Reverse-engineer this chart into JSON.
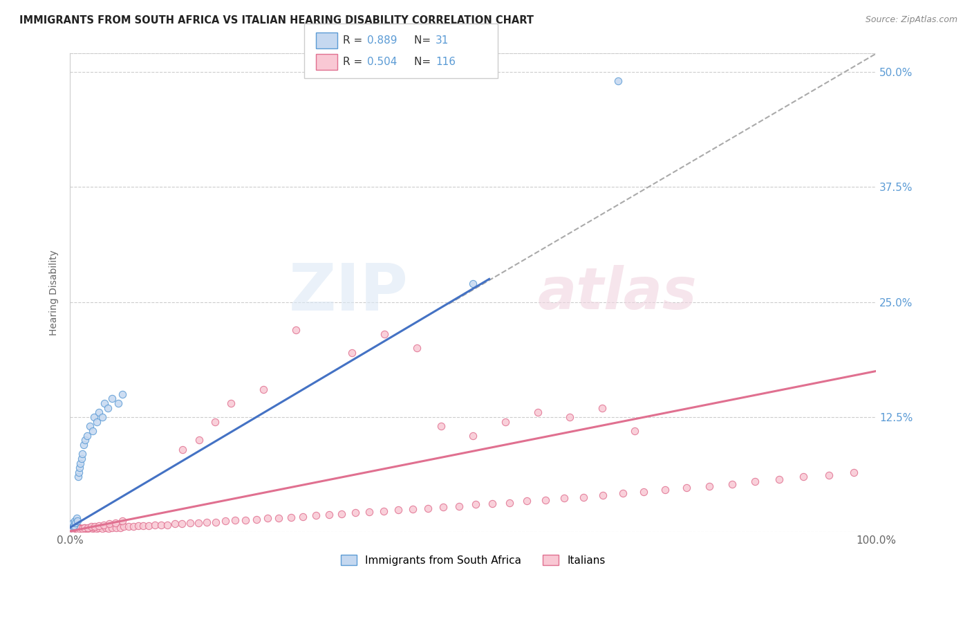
{
  "title": "IMMIGRANTS FROM SOUTH AFRICA VS ITALIAN HEARING DISABILITY CORRELATION CHART",
  "source": "Source: ZipAtlas.com",
  "ylabel": "Hearing Disability",
  "yticks": [
    0.0,
    0.125,
    0.25,
    0.375,
    0.5
  ],
  "ytick_labels": [
    "",
    "12.5%",
    "25.0%",
    "37.5%",
    "50.0%"
  ],
  "xlim": [
    0.0,
    1.0
  ],
  "ylim": [
    0.0,
    0.52
  ],
  "R_blue": 0.889,
  "N_blue": 31,
  "R_pink": 0.504,
  "N_pink": 116,
  "legend_label_blue": "Immigrants from South Africa",
  "legend_label_pink": "Italians",
  "color_blue_fill": "#c5d8f0",
  "color_blue_edge": "#5b9bd5",
  "color_pink_fill": "#f9c8d4",
  "color_pink_edge": "#e07090",
  "color_blue_line": "#4472c4",
  "color_pink_line": "#e07090",
  "color_dashed": "#aaaaaa",
  "bg_color": "#ffffff",
  "blue_scatter_x": [
    0.001,
    0.002,
    0.003,
    0.004,
    0.005,
    0.006,
    0.007,
    0.008,
    0.009,
    0.01,
    0.011,
    0.012,
    0.013,
    0.014,
    0.015,
    0.017,
    0.019,
    0.021,
    0.025,
    0.028,
    0.03,
    0.033,
    0.036,
    0.04,
    0.043,
    0.047,
    0.052,
    0.06,
    0.065,
    0.5,
    0.68
  ],
  "blue_scatter_y": [
    0.005,
    0.008,
    0.01,
    0.006,
    0.007,
    0.012,
    0.01,
    0.015,
    0.012,
    0.06,
    0.065,
    0.07,
    0.075,
    0.08,
    0.085,
    0.095,
    0.1,
    0.105,
    0.115,
    0.11,
    0.125,
    0.12,
    0.13,
    0.125,
    0.14,
    0.135,
    0.145,
    0.14,
    0.15,
    0.27,
    0.49
  ],
  "pink_scatter_x": [
    0.001,
    0.002,
    0.003,
    0.004,
    0.005,
    0.006,
    0.007,
    0.008,
    0.009,
    0.01,
    0.011,
    0.012,
    0.014,
    0.016,
    0.018,
    0.02,
    0.022,
    0.025,
    0.028,
    0.03,
    0.033,
    0.036,
    0.04,
    0.044,
    0.048,
    0.052,
    0.057,
    0.062,
    0.067,
    0.073,
    0.079,
    0.085,
    0.091,
    0.098,
    0.105,
    0.113,
    0.121,
    0.13,
    0.139,
    0.149,
    0.159,
    0.17,
    0.181,
    0.193,
    0.205,
    0.218,
    0.231,
    0.245,
    0.259,
    0.274,
    0.289,
    0.305,
    0.321,
    0.337,
    0.354,
    0.371,
    0.389,
    0.407,
    0.425,
    0.444,
    0.463,
    0.483,
    0.503,
    0.524,
    0.545,
    0.567,
    0.59,
    0.613,
    0.637,
    0.661,
    0.686,
    0.712,
    0.738,
    0.765,
    0.793,
    0.821,
    0.85,
    0.88,
    0.91,
    0.941,
    0.972,
    0.002,
    0.003,
    0.004,
    0.005,
    0.006,
    0.007,
    0.008,
    0.009,
    0.01,
    0.012,
    0.015,
    0.018,
    0.022,
    0.026,
    0.031,
    0.036,
    0.042,
    0.049,
    0.056,
    0.065,
    0.46,
    0.5,
    0.54,
    0.58,
    0.62,
    0.66,
    0.7,
    0.35,
    0.39,
    0.43,
    0.2,
    0.24,
    0.28,
    0.14,
    0.16,
    0.18
  ],
  "pink_scatter_y": [
    0.002,
    0.003,
    0.004,
    0.003,
    0.005,
    0.003,
    0.004,
    0.003,
    0.005,
    0.004,
    0.003,
    0.005,
    0.004,
    0.003,
    0.005,
    0.004,
    0.004,
    0.005,
    0.004,
    0.005,
    0.004,
    0.005,
    0.004,
    0.005,
    0.004,
    0.005,
    0.005,
    0.005,
    0.006,
    0.006,
    0.006,
    0.007,
    0.007,
    0.007,
    0.008,
    0.008,
    0.008,
    0.009,
    0.009,
    0.01,
    0.01,
    0.011,
    0.011,
    0.012,
    0.013,
    0.013,
    0.014,
    0.015,
    0.015,
    0.016,
    0.017,
    0.018,
    0.019,
    0.02,
    0.021,
    0.022,
    0.023,
    0.024,
    0.025,
    0.026,
    0.027,
    0.028,
    0.03,
    0.031,
    0.032,
    0.034,
    0.035,
    0.037,
    0.038,
    0.04,
    0.042,
    0.044,
    0.046,
    0.048,
    0.05,
    0.052,
    0.055,
    0.057,
    0.06,
    0.062,
    0.065,
    0.003,
    0.002,
    0.004,
    0.003,
    0.002,
    0.004,
    0.003,
    0.003,
    0.003,
    0.004,
    0.004,
    0.005,
    0.005,
    0.006,
    0.006,
    0.007,
    0.008,
    0.009,
    0.01,
    0.012,
    0.115,
    0.105,
    0.12,
    0.13,
    0.125,
    0.135,
    0.11,
    0.195,
    0.215,
    0.2,
    0.14,
    0.155,
    0.22,
    0.09,
    0.1,
    0.12
  ],
  "blue_line_x0": 0.0,
  "blue_line_x1": 0.52,
  "blue_line_y0": 0.005,
  "blue_line_y1": 0.275,
  "pink_line_x0": 0.0,
  "pink_line_x1": 1.0,
  "pink_line_y0": 0.001,
  "pink_line_y1": 0.175,
  "dash_line_x0": 0.47,
  "dash_line_x1": 1.0,
  "dash_line_y0": 0.248,
  "dash_line_y1": 0.52
}
